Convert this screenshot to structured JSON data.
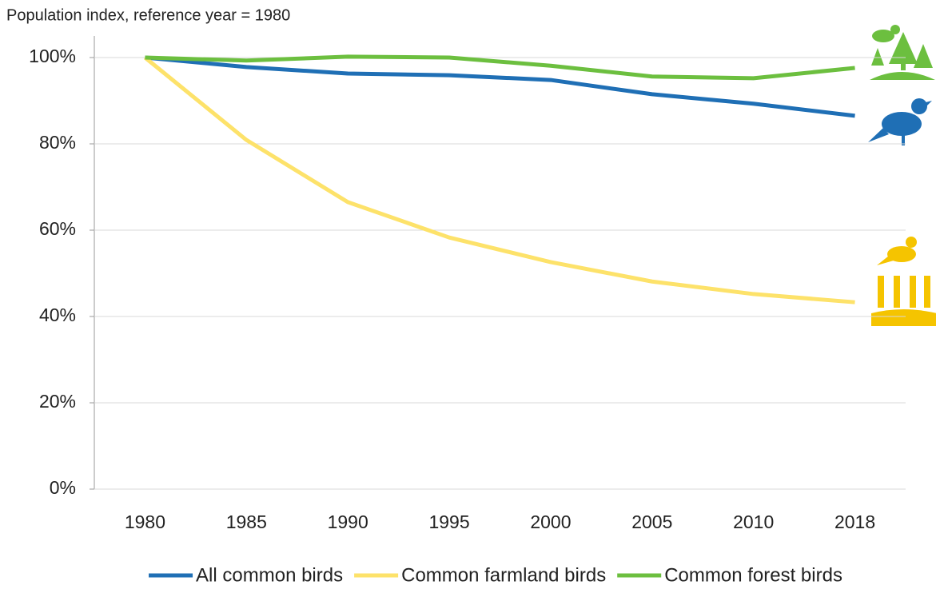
{
  "chart_data": {
    "type": "line",
    "title": "Population index, reference year = 1980",
    "categories": [
      "1980",
      "1985",
      "1990",
      "1995",
      "2000",
      "2005",
      "2010",
      "2018"
    ],
    "series": [
      {
        "name": "All common birds",
        "color": "#1f6fb5",
        "values": [
          100,
          97.8,
          96.3,
          95.9,
          94.8,
          91.5,
          89.3,
          86.5
        ]
      },
      {
        "name": "Common farmland birds",
        "color": "#fde26a",
        "values": [
          100,
          80.9,
          66.5,
          58.3,
          52.6,
          48.1,
          45.2,
          43.3
        ]
      },
      {
        "name": "Common forest birds",
        "color": "#6cbf3f",
        "values": [
          100,
          99.3,
          100.2,
          100,
          98.1,
          95.6,
          95.2,
          97.6
        ]
      }
    ],
    "ylim": [
      0,
      105
    ],
    "yticks": [
      {
        "value": 0,
        "label": "0%"
      },
      {
        "value": 20,
        "label": "20%"
      },
      {
        "value": 40,
        "label": "40%"
      },
      {
        "value": 60,
        "label": "60%"
      },
      {
        "value": 80,
        "label": "80%"
      },
      {
        "value": 100,
        "label": "100%"
      }
    ],
    "grid": true
  }
}
